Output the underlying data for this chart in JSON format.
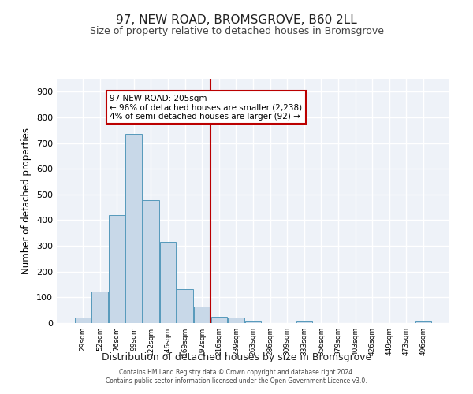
{
  "title": "97, NEW ROAD, BROMSGROVE, B60 2LL",
  "subtitle": "Size of property relative to detached houses in Bromsgrove",
  "xlabel": "Distribution of detached houses by size in Bromsgrove",
  "ylabel": "Number of detached properties",
  "bin_labels": [
    "29sqm",
    "52sqm",
    "76sqm",
    "99sqm",
    "122sqm",
    "146sqm",
    "169sqm",
    "192sqm",
    "216sqm",
    "239sqm",
    "263sqm",
    "286sqm",
    "309sqm",
    "333sqm",
    "356sqm",
    "379sqm",
    "403sqm",
    "426sqm",
    "449sqm",
    "473sqm",
    "496sqm"
  ],
  "bar_heights": [
    20,
    122,
    420,
    735,
    478,
    315,
    132,
    65,
    25,
    22,
    10,
    0,
    0,
    8,
    0,
    0,
    0,
    0,
    0,
    0,
    8
  ],
  "bar_color": "#c8d8e8",
  "bar_edge_color": "#5599bb",
  "vline_x": 7.5,
  "vline_color": "#bb0000",
  "annotation_text": "97 NEW ROAD: 205sqm\n← 96% of detached houses are smaller (2,238)\n4% of semi-detached houses are larger (92) →",
  "annotation_box_color": "#ffffff",
  "annotation_box_edge": "#bb0000",
  "ylim": [
    0,
    950
  ],
  "yticks": [
    0,
    100,
    200,
    300,
    400,
    500,
    600,
    700,
    800,
    900
  ],
  "background_color": "#eef2f8",
  "grid_color": "#ffffff",
  "footer": "Contains HM Land Registry data © Crown copyright and database right 2024.\nContains public sector information licensed under the Open Government Licence v3.0.",
  "title_fontsize": 11,
  "subtitle_fontsize": 9,
  "xlabel_fontsize": 9,
  "ylabel_fontsize": 8.5,
  "annot_fontsize": 7.5
}
